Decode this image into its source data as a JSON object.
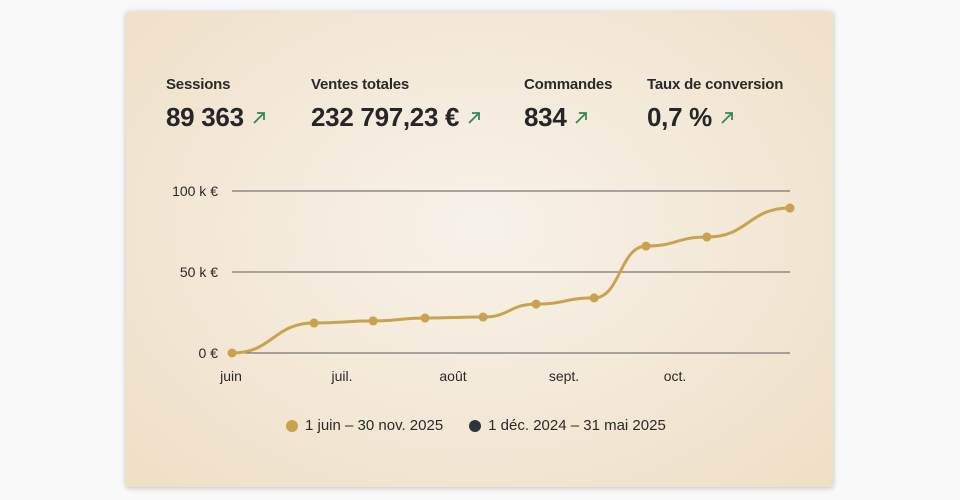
{
  "metrics": [
    {
      "label": "Sessions",
      "value": "89 363",
      "trend": "up-arrow-icon"
    },
    {
      "label": "Ventes totales",
      "value": "232 797,23 €",
      "trend": "up-arrow-icon"
    },
    {
      "label": "Commandes",
      "value": "834",
      "trend": "up-arrow-icon"
    },
    {
      "label": "Taux de conversion",
      "value": "0,7 %",
      "trend": "up-arrow-icon"
    }
  ],
  "colors": {
    "series_current": "#c9a24f",
    "series_previous": "#2f343b",
    "trend_up": "#2e8b57",
    "gridline": "#5a5a5a"
  },
  "legend": [
    {
      "label": "1 juin – 30 nov. 2025",
      "color": "#c9a24f"
    },
    {
      "label": "1 déc. 2024 – 31 mai 2025",
      "color": "#2f343b"
    }
  ],
  "chart_data": {
    "type": "line",
    "title": "",
    "xlabel": "",
    "ylabel": "",
    "x_tick_labels": [
      "juin",
      "juil.",
      "août",
      "sept.",
      "oct."
    ],
    "y_tick_labels": [
      "0 €",
      "50 k €",
      "100 k €"
    ],
    "ylim": [
      0,
      100000
    ],
    "grid": true,
    "legend_position": "bottom",
    "series": [
      {
        "name": "1 juin – 30 nov. 2025",
        "color": "#c9a24f",
        "x_positions": [
          0,
          0.147,
          0.253,
          0.346,
          0.45,
          0.545,
          0.649,
          0.742,
          0.851,
          1.0
        ],
        "values": [
          0,
          18500,
          19800,
          21600,
          22200,
          30200,
          34000,
          66000,
          71600,
          89500
        ]
      },
      {
        "name": "1 déc. 2024 – 31 mai 2025",
        "color": "#2f343b",
        "values": []
      }
    ]
  }
}
